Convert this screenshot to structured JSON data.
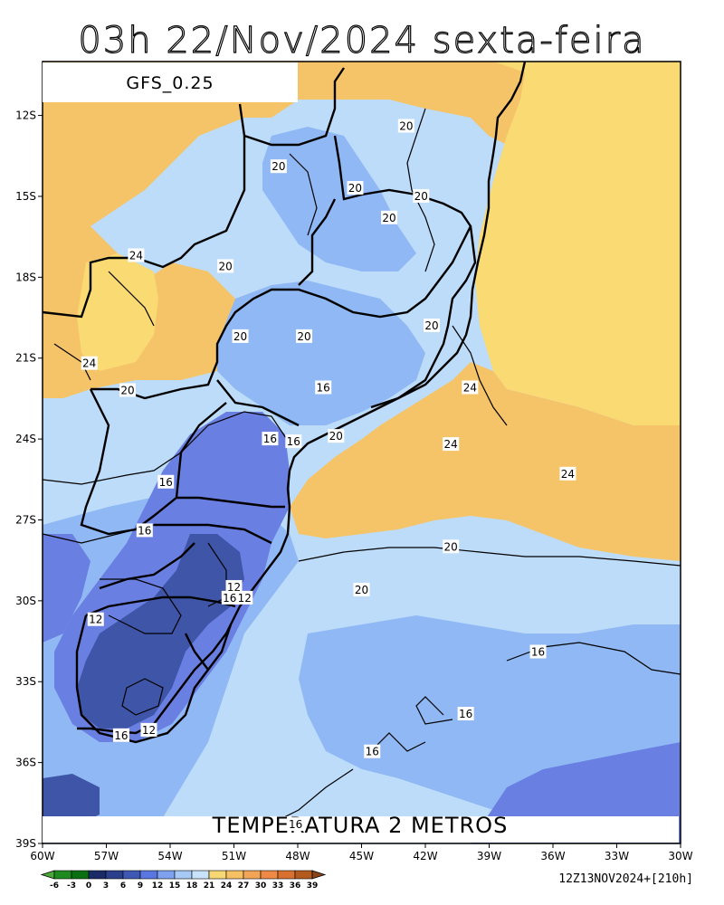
{
  "header": {
    "title": "03h 22/Nov/2024 sexta-feira"
  },
  "map": {
    "model_label": "GFS_0.25",
    "variable_title": "TEMPERATURA 2 METROS",
    "lat_ticks": [
      "12S",
      "15S",
      "18S",
      "21S",
      "24S",
      "27S",
      "30S",
      "33S",
      "36S",
      "39S"
    ],
    "lon_ticks": [
      "60W",
      "57W",
      "54W",
      "51W",
      "48W",
      "45W",
      "42W",
      "39W",
      "36W",
      "33W",
      "30W"
    ],
    "contour_labels": [
      {
        "text": "20",
        "lon": -42.9,
        "lat": -12.4
      },
      {
        "text": "20",
        "lon": -48.9,
        "lat": -13.9
      },
      {
        "text": "20",
        "lon": -45.3,
        "lat": -14.7
      },
      {
        "text": "20",
        "lon": -42.2,
        "lat": -15.0
      },
      {
        "text": "20",
        "lon": -43.7,
        "lat": -15.8
      },
      {
        "text": "24",
        "lon": -55.6,
        "lat": -17.2
      },
      {
        "text": "20",
        "lon": -51.4,
        "lat": -17.6
      },
      {
        "text": "20",
        "lon": -41.7,
        "lat": -19.8
      },
      {
        "text": "20",
        "lon": -50.7,
        "lat": -20.2
      },
      {
        "text": "20",
        "lon": -47.7,
        "lat": -20.2
      },
      {
        "text": "24",
        "lon": -57.8,
        "lat": -21.2
      },
      {
        "text": "24",
        "lon": -39.9,
        "lat": -22.1
      },
      {
        "text": "20",
        "lon": -56.0,
        "lat": -22.2
      },
      {
        "text": "16",
        "lon": -46.8,
        "lat": -22.1
      },
      {
        "text": "16",
        "lon": -49.3,
        "lat": -24.0
      },
      {
        "text": "16",
        "lon": -48.2,
        "lat": -24.1
      },
      {
        "text": "20",
        "lon": -46.2,
        "lat": -23.9
      },
      {
        "text": "24",
        "lon": -40.8,
        "lat": -24.2
      },
      {
        "text": "24",
        "lon": -35.3,
        "lat": -25.3
      },
      {
        "text": "16",
        "lon": -54.2,
        "lat": -25.6
      },
      {
        "text": "16",
        "lon": -55.2,
        "lat": -27.4
      },
      {
        "text": "20",
        "lon": -40.8,
        "lat": -28.0
      },
      {
        "text": "12",
        "lon": -51.0,
        "lat": -29.5
      },
      {
        "text": "20",
        "lon": -45.0,
        "lat": -29.6
      },
      {
        "text": "16",
        "lon": -51.2,
        "lat": -29.9
      },
      {
        "text": "12",
        "lon": -50.5,
        "lat": -29.9
      },
      {
        "text": "12",
        "lon": -57.5,
        "lat": -30.7
      },
      {
        "text": "16",
        "lon": -36.7,
        "lat": -31.9
      },
      {
        "text": "16",
        "lon": -40.1,
        "lat": -34.2
      },
      {
        "text": "12",
        "lon": -55.0,
        "lat": -34.8
      },
      {
        "text": "16",
        "lon": -56.3,
        "lat": -35.0
      },
      {
        "text": "16",
        "lon": -44.5,
        "lat": -35.6
      },
      {
        "text": "16",
        "lon": -48.1,
        "lat": -38.3
      }
    ],
    "colorbar": {
      "ticks": [
        "-6",
        "-3",
        "0",
        "3",
        "6",
        "9",
        "12",
        "15",
        "18",
        "21",
        "24",
        "27",
        "30",
        "33",
        "36",
        "39"
      ],
      "colors": [
        "#4aa83c",
        "#1f8a1f",
        "#0a6f10",
        "#1a2a66",
        "#2b3f8c",
        "#3e58b4",
        "#5a76e0",
        "#7fa2f0",
        "#a7c9f5",
        "#c8e2fa",
        "#f7d774",
        "#f6c164",
        "#f2a556",
        "#ee8a45",
        "#d8702f",
        "#b35a1e",
        "#8a4418"
      ]
    },
    "run_info": "12Z13NOV2024+[210h]"
  },
  "colors": {
    "deep_blue": "#3f55a8",
    "mid_blue": "#6a7fe2",
    "light_blue": "#8fb8f4",
    "pale_blue": "#bcdcfa",
    "yellow": "#f9da73",
    "orange": "#f6c468"
  }
}
